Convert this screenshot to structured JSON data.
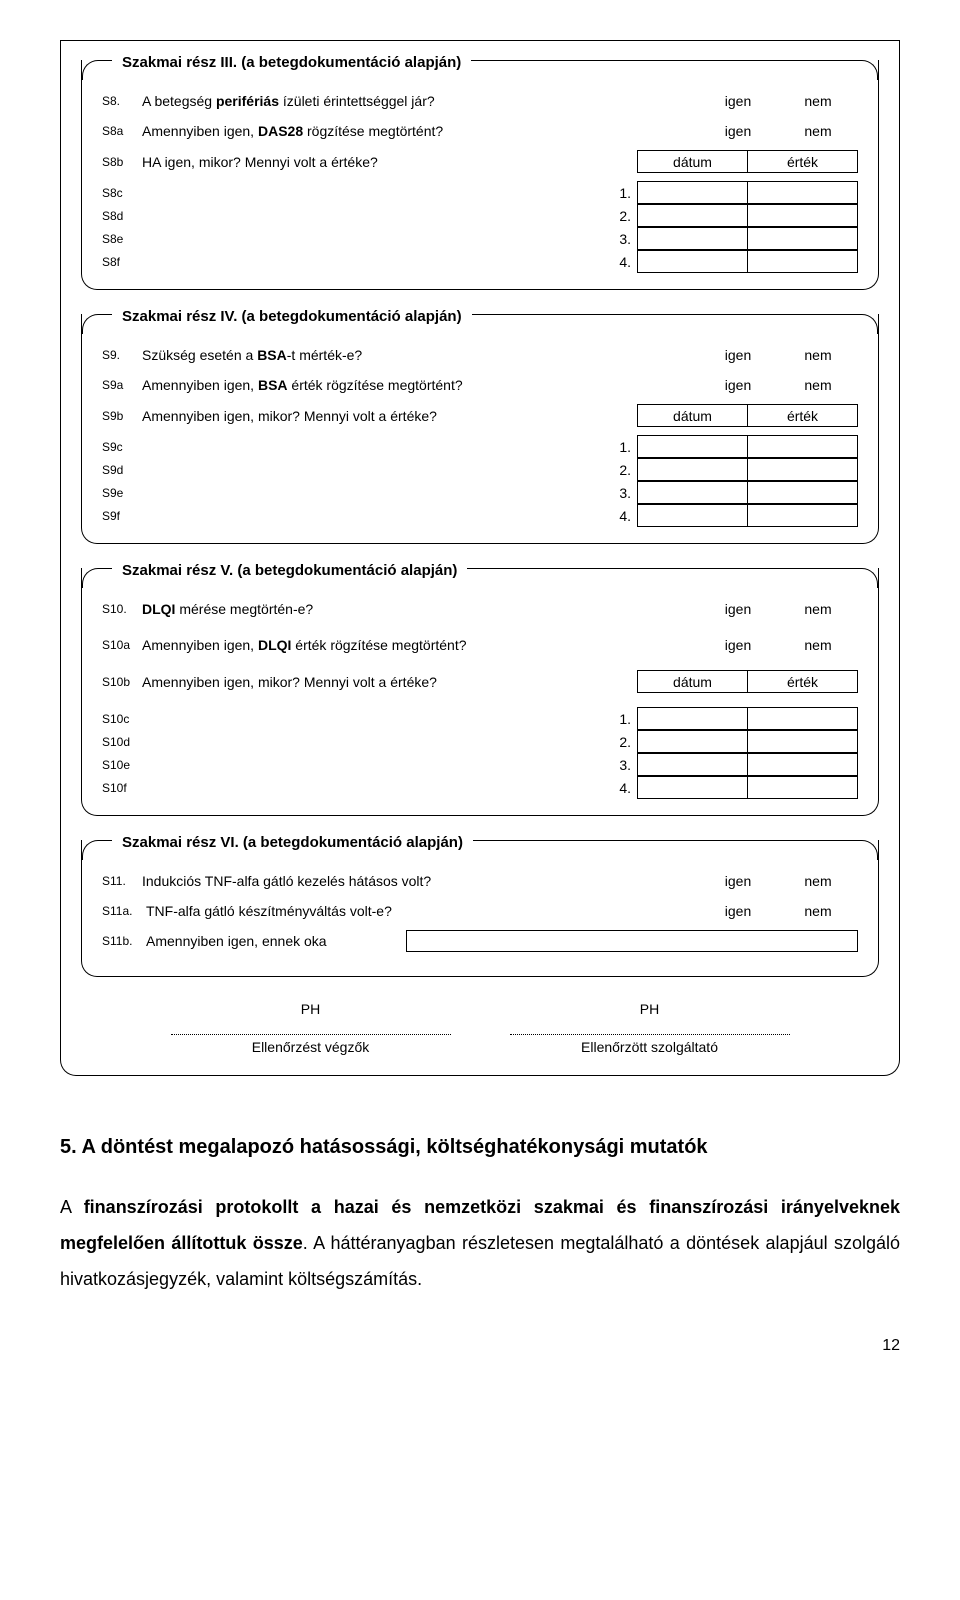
{
  "sec3": {
    "title": "Szakmai rész III. (a betegdokumentáció alapján)",
    "rows": [
      {
        "code": "S8.",
        "text": "A betegség perifériás ízületi érintettséggel jár?",
        "o1": "igen",
        "o2": "nem"
      },
      {
        "code": "S8a",
        "text": "Amennyiben igen, DAS28 rögzítése megtörtént?",
        "o1": "igen",
        "o2": "nem"
      },
      {
        "code": "S8b",
        "text": "HA igen, mikor? Mennyi volt a  értéke?",
        "h1": "dátum",
        "h2": "érték"
      }
    ],
    "cells": [
      {
        "code": "S8c",
        "n": "1."
      },
      {
        "code": "S8d",
        "n": "2."
      },
      {
        "code": "S8e",
        "n": "3."
      },
      {
        "code": "S8f",
        "n": "4."
      }
    ]
  },
  "sec4": {
    "title": "Szakmai rész IV. (a betegdokumentáció alapján)",
    "rows": [
      {
        "code": "S9.",
        "text": "Szükség esetén a BSA-t mérték-e?",
        "o1": "igen",
        "o2": "nem"
      },
      {
        "code": "S9a",
        "text": "Amennyiben igen, BSA érték rögzítése megtörtént?",
        "o1": "igen",
        "o2": "nem"
      },
      {
        "code": "S9b",
        "text": "Amennyiben igen, mikor? Mennyi volt a  értéke?",
        "h1": "dátum",
        "h2": "érték"
      }
    ],
    "cells": [
      {
        "code": "S9c",
        "n": "1."
      },
      {
        "code": "S9d",
        "n": "2."
      },
      {
        "code": "S9e",
        "n": "3."
      },
      {
        "code": "S9f",
        "n": "4."
      }
    ]
  },
  "sec5": {
    "title": "Szakmai rész V. (a betegdokumentáció alapján)",
    "rows": [
      {
        "code": "S10.",
        "text": "DLQI mérése megtörtén-e?",
        "o1": "igen",
        "o2": "nem"
      },
      {
        "code": "S10a",
        "text": "Amennyiben igen, DLQI érték rögzítése megtörtént?",
        "o1": "igen",
        "o2": "nem"
      },
      {
        "code": "S10b",
        "text": "Amennyiben igen, mikor? Mennyi volt a  értéke?",
        "h1": "dátum",
        "h2": "érték"
      }
    ],
    "cells": [
      {
        "code": "S10c",
        "n": "1."
      },
      {
        "code": "S10d",
        "n": "2."
      },
      {
        "code": "S10e",
        "n": "3."
      },
      {
        "code": "S10f",
        "n": "4."
      }
    ]
  },
  "sec6": {
    "title": "Szakmai rész VI. (a betegdokumentáció alapján)",
    "rows": [
      {
        "code": "S11.",
        "text": "Indukciós TNF-alfa gátló kezelés hátásos volt?",
        "o1": "igen",
        "o2": "nem"
      },
      {
        "code": "S11a.",
        "text": "TNF-alfa gátló készítményváltás volt-e?",
        "o1": "igen",
        "o2": "nem"
      },
      {
        "code": "S11b.",
        "text": "Amennyiben igen, ennek oka",
        "input": true
      }
    ]
  },
  "sig": {
    "ph": "PH",
    "left": "Ellenőrzést végzők",
    "right": "Ellenőrzött szolgáltató"
  },
  "section5": {
    "head": "5.    A döntést megalapozó hatásossági, költséghatékonysági mutatók",
    "body": "A finanszírozási protokollt a hazai és nemzetközi szakmai és finanszírozási irányelveknek megfelelően állítottuk össze. A háttéranyagban részletesen megtalálható a döntések alapjául szolgáló hivatkozásjegyzék, valamint költségszámítás."
  },
  "pagenum": "12"
}
